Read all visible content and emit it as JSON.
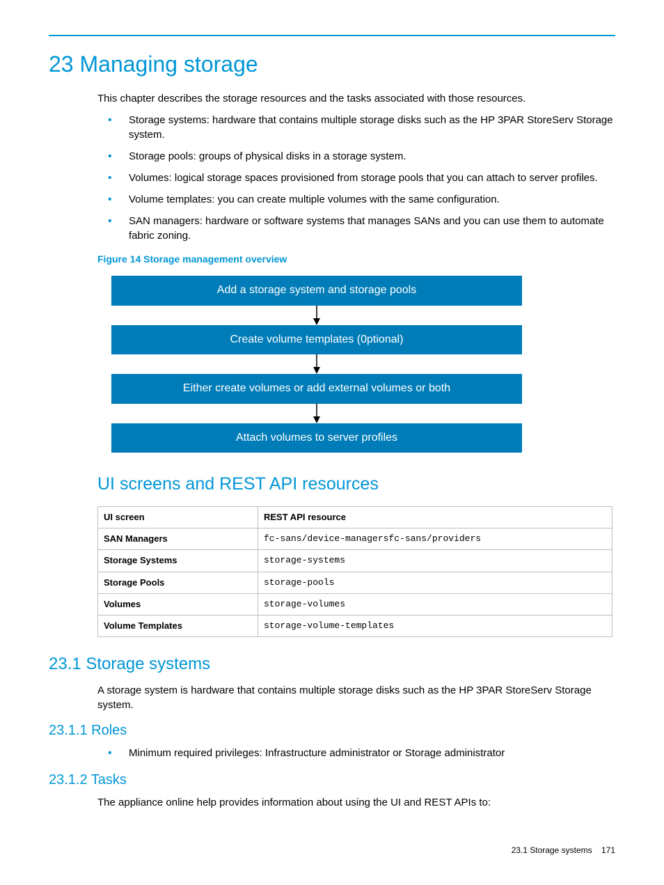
{
  "colors": {
    "accent": "#0096d6",
    "flowbox_bg": "#007db8",
    "flowbox_text": "#ffffff",
    "table_border": "#bfbfbf",
    "body_text": "#000000",
    "background": "#ffffff"
  },
  "chapter": {
    "number": "23",
    "title": "Managing storage",
    "intro": "This chapter describes the storage resources and the tasks associated with those resources."
  },
  "bullets_main": [
    "Storage systems: hardware that contains multiple storage disks such as the HP 3PAR StoreServ Storage system.",
    "Storage pools: groups of physical disks in a storage system.",
    "Volumes: logical storage spaces provisioned from storage pools that you can attach to server profiles.",
    "Volume templates: you can create multiple volumes with the same configuration.",
    "SAN managers: hardware or software systems that manages SANs and you can use them to automate fabric zoning."
  ],
  "figure": {
    "caption": "Figure 14 Storage management overview",
    "steps": [
      "Add a storage system and storage pools",
      "Create volume templates (0ptional)",
      "Either create volumes or add external volumes or both",
      "Attach volumes to server profiles"
    ]
  },
  "section_ui_api": {
    "title": "UI screens and REST API resources",
    "header_left": "UI screen",
    "header_right": "REST API resource",
    "rows": [
      {
        "left": "SAN Managers",
        "right": "fc-sans/device-managersfc-sans/providers"
      },
      {
        "left": "Storage Systems",
        "right": "storage-systems"
      },
      {
        "left": "Storage Pools",
        "right": "storage-pools"
      },
      {
        "left": "Volumes",
        "right": "storage-volumes"
      },
      {
        "left": "Volume Templates",
        "right": "storage-volume-templates"
      }
    ]
  },
  "section_23_1": {
    "title": "23.1 Storage systems",
    "body": "A storage system is hardware that contains multiple storage disks such as the HP 3PAR StoreServ Storage system."
  },
  "section_23_1_1": {
    "title": "23.1.1 Roles",
    "bullet": "Minimum required privileges: Infrastructure administrator or Storage administrator"
  },
  "section_23_1_2": {
    "title": "23.1.2 Tasks",
    "body": "The appliance online help provides information about using the UI and REST APIs to:"
  },
  "footer": {
    "section": "23.1 Storage systems",
    "page": "171"
  }
}
